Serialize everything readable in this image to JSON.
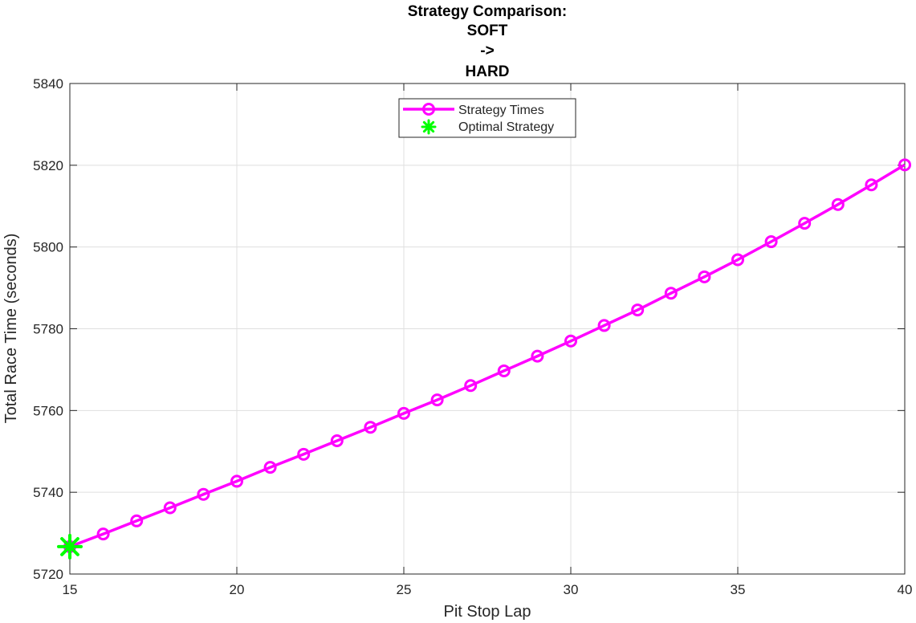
{
  "chart_data": {
    "type": "line",
    "title_lines": [
      "Strategy Comparison:",
      "SOFT",
      "->",
      "HARD"
    ],
    "xlabel": "Pit Stop Lap",
    "ylabel": "Total Race Time (seconds)",
    "xlim": [
      15,
      40
    ],
    "ylim": [
      5720,
      5840
    ],
    "xticks": [
      15,
      20,
      25,
      30,
      35,
      40
    ],
    "yticks": [
      5720,
      5740,
      5760,
      5780,
      5800,
      5820,
      5840
    ],
    "grid": true,
    "legend_position": "top-center",
    "series": [
      {
        "name": "Strategy Times",
        "color": "#ff00ff",
        "marker": "circle",
        "x": [
          15,
          16,
          17,
          18,
          19,
          20,
          21,
          22,
          23,
          24,
          25,
          26,
          27,
          28,
          29,
          30,
          31,
          32,
          33,
          34,
          35,
          36,
          37,
          38,
          39,
          40
        ],
        "y": [
          5726.7,
          5729.8,
          5733.0,
          5736.2,
          5739.5,
          5742.7,
          5746.1,
          5749.3,
          5752.6,
          5755.9,
          5759.3,
          5762.6,
          5766.1,
          5769.7,
          5773.3,
          5777.0,
          5780.8,
          5784.6,
          5788.7,
          5792.7,
          5796.9,
          5801.3,
          5805.8,
          5810.4,
          5815.2,
          5820.1
        ]
      },
      {
        "name": "Optimal Strategy",
        "color": "#00ff00",
        "marker": "asterisk",
        "x": [
          15
        ],
        "y": [
          5726.7
        ]
      }
    ]
  }
}
